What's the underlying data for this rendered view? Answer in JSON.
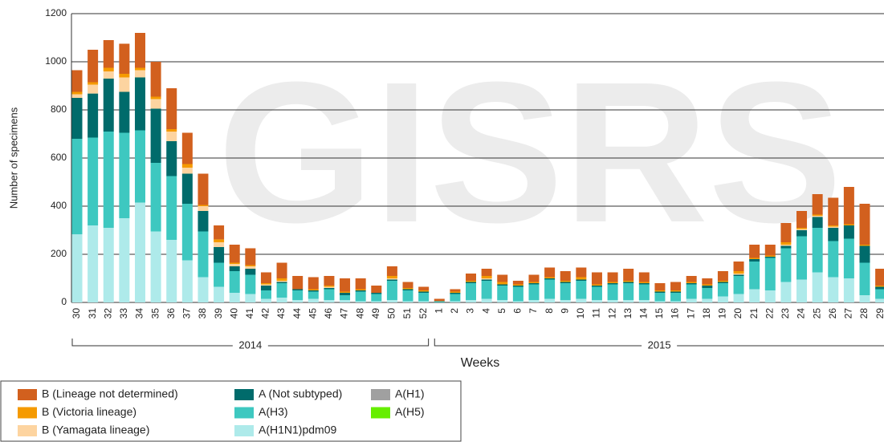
{
  "chart_data": {
    "type": "stacked_bar",
    "watermark": "GISRS",
    "y_label": "Number of specimens",
    "x_label": "Weeks",
    "x_groups": [
      "2014",
      "2015"
    ],
    "categories": [
      "30",
      "31",
      "32",
      "33",
      "34",
      "35",
      "36",
      "37",
      "38",
      "39",
      "40",
      "41",
      "42",
      "43",
      "44",
      "45",
      "46",
      "47",
      "48",
      "49",
      "50",
      "51",
      "52",
      "1",
      "2",
      "3",
      "4",
      "5",
      "6",
      "7",
      "8",
      "9",
      "10",
      "11",
      "12",
      "13",
      "14",
      "15",
      "16",
      "17",
      "18",
      "19",
      "20",
      "21",
      "22",
      "23",
      "24",
      "25",
      "26",
      "27",
      "28",
      "29"
    ],
    "ylim": [
      0,
      1200
    ],
    "yticks": [
      0,
      200,
      400,
      600,
      800,
      1000,
      1200
    ],
    "grid": true,
    "series": [
      {
        "name": "B (Lineage not determined)",
        "color": "#d2601e",
        "values": [
          90,
          135,
          115,
          125,
          145,
          145,
          170,
          130,
          130,
          58,
          75,
          70,
          45,
          65,
          55,
          50,
          40,
          55,
          45,
          30,
          40,
          25,
          15,
          10,
          10,
          30,
          30,
          30,
          15,
          30,
          40,
          40,
          40,
          50,
          40,
          50,
          40,
          30,
          35,
          25,
          25,
          40,
          40,
          55,
          45,
          80,
          70,
          85,
          115,
          155,
          170,
          70
        ]
      },
      {
        "name": "B (Victoria lineage)",
        "color": "#f59a00",
        "values": [
          10,
          10,
          15,
          15,
          10,
          10,
          10,
          15,
          5,
          12,
          5,
          5,
          5,
          10,
          0,
          5,
          5,
          5,
          5,
          0,
          10,
          5,
          5,
          0,
          5,
          5,
          10,
          10,
          5,
          5,
          5,
          5,
          10,
          5,
          5,
          5,
          5,
          5,
          5,
          5,
          5,
          5,
          10,
          5,
          5,
          10,
          5,
          5,
          5,
          5,
          5,
          5
        ]
      },
      {
        "name": "B (Yamagata lineage)",
        "color": "#fdd4a0",
        "values": [
          15,
          37,
          30,
          60,
          30,
          40,
          40,
          25,
          20,
          20,
          10,
          10,
          5,
          5,
          0,
          0,
          5,
          0,
          0,
          0,
          5,
          0,
          0,
          0,
          0,
          0,
          5,
          0,
          0,
          0,
          0,
          0,
          0,
          0,
          0,
          0,
          0,
          0,
          0,
          0,
          0,
          0,
          5,
          0,
          0,
          5,
          5,
          5,
          5,
          0,
          0,
          0
        ]
      },
      {
        "name": "A (Not subtyped)",
        "color": "#006b6b",
        "values": [
          170,
          183,
          220,
          170,
          220,
          225,
          145,
          125,
          85,
          65,
          20,
          25,
          20,
          5,
          5,
          5,
          5,
          10,
          5,
          5,
          5,
          5,
          5,
          0,
          5,
          5,
          5,
          5,
          5,
          5,
          5,
          5,
          5,
          5,
          5,
          5,
          5,
          5,
          5,
          5,
          10,
          5,
          5,
          10,
          5,
          10,
          25,
          45,
          55,
          55,
          70,
          10
        ]
      },
      {
        "name": "A(H3)",
        "color": "#3ec8c0",
        "values": [
          397,
          365,
          400,
          355,
          300,
          285,
          265,
          235,
          190,
          100,
          90,
          80,
          35,
          60,
          40,
          30,
          45,
          20,
          40,
          30,
          80,
          45,
          35,
          5,
          30,
          70,
          75,
          60,
          60,
          65,
          80,
          70,
          75,
          55,
          65,
          70,
          65,
          35,
          35,
          60,
          45,
          55,
          75,
          115,
          135,
          140,
          180,
          185,
          150,
          165,
          135,
          40
        ]
      },
      {
        "name": "A(H1N1)pdm09",
        "color": "#aeeaea",
        "values": [
          283,
          320,
          310,
          350,
          415,
          295,
          260,
          175,
          105,
          65,
          40,
          35,
          15,
          20,
          10,
          15,
          10,
          10,
          5,
          5,
          10,
          5,
          5,
          0,
          5,
          10,
          15,
          10,
          5,
          10,
          15,
          10,
          15,
          10,
          10,
          10,
          10,
          5,
          5,
          15,
          15,
          25,
          35,
          55,
          50,
          85,
          95,
          125,
          105,
          100,
          30,
          15
        ]
      },
      {
        "name": "A(H1)",
        "color": "#a0a0a0",
        "values": [
          0,
          0,
          0,
          0,
          0,
          0,
          0,
          0,
          0,
          0,
          0,
          0,
          0,
          0,
          0,
          0,
          0,
          0,
          0,
          0,
          0,
          0,
          0,
          0,
          0,
          0,
          0,
          0,
          0,
          0,
          0,
          0,
          0,
          0,
          0,
          0,
          0,
          0,
          0,
          0,
          0,
          0,
          0,
          0,
          0,
          0,
          0,
          0,
          0,
          0,
          0,
          0
        ]
      },
      {
        "name": "A(H5)",
        "color": "#66ee00",
        "values": [
          0,
          0,
          0,
          0,
          0,
          0,
          0,
          0,
          0,
          0,
          0,
          0,
          0,
          0,
          0,
          0,
          0,
          0,
          0,
          0,
          0,
          0,
          0,
          0,
          0,
          0,
          0,
          0,
          0,
          0,
          0,
          0,
          0,
          0,
          0,
          0,
          0,
          0,
          0,
          0,
          0,
          0,
          0,
          0,
          0,
          0,
          0,
          0,
          0,
          0,
          0,
          0
        ]
      }
    ]
  }
}
